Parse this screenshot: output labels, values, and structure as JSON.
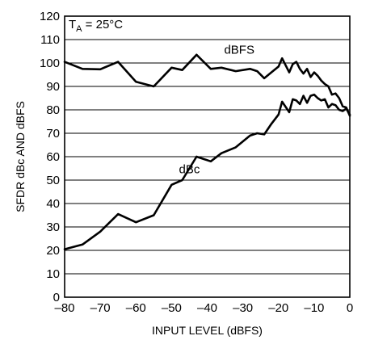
{
  "chart_data": {
    "type": "line",
    "xlabel": "INPUT LEVEL (dBFS)",
    "ylabel": "SFDR dBc AND dBFS",
    "xlim": [
      -80,
      0
    ],
    "ylim": [
      0,
      120
    ],
    "x_ticks": [
      -80,
      -70,
      -60,
      -50,
      -40,
      -30,
      -20,
      -10,
      0
    ],
    "y_ticks": [
      0,
      10,
      20,
      30,
      40,
      50,
      60,
      70,
      80,
      90,
      100,
      110,
      120
    ],
    "grid": "horizontal",
    "condition": {
      "label": "T",
      "subscript": "A",
      "value": " = 25°C"
    },
    "series": [
      {
        "name": "dBFS",
        "x": [
          -80,
          -75,
          -70,
          -65,
          -60,
          -55,
          -50,
          -47,
          -43,
          -39,
          -36,
          -32,
          -28,
          -26,
          -24,
          -22,
          -20,
          -19,
          -17,
          -16,
          -15,
          -14,
          -13,
          -12,
          -11,
          -10,
          -9,
          -8,
          -7,
          -6,
          -5,
          -4,
          -3,
          -2,
          -1,
          0
        ],
        "y": [
          100.5,
          97.5,
          97.3,
          100.5,
          92,
          90,
          98,
          97,
          103.5,
          97.5,
          98,
          96.5,
          97.5,
          96.5,
          93.5,
          96,
          98.5,
          102,
          96,
          99.5,
          100.5,
          97.5,
          95.5,
          97.5,
          94,
          96,
          94.5,
          92.5,
          91,
          90,
          86.5,
          87,
          85,
          81.5,
          81,
          77.5
        ]
      },
      {
        "name": "dBc",
        "x": [
          -80,
          -75,
          -70,
          -65,
          -60,
          -55,
          -50,
          -47,
          -43,
          -39,
          -36,
          -32,
          -28,
          -26,
          -24,
          -22,
          -20,
          -19,
          -17,
          -16,
          -15,
          -14,
          -13,
          -12,
          -11,
          -10,
          -9,
          -8,
          -7,
          -6,
          -5,
          -4,
          -3,
          -2,
          -1,
          0
        ],
        "y": [
          20.5,
          22.5,
          28,
          35.5,
          32,
          35,
          48,
          50,
          60,
          58,
          61.5,
          64,
          69,
          70,
          69.5,
          74,
          78,
          83.5,
          79,
          84.5,
          84,
          82.5,
          86,
          83,
          86,
          86.5,
          85,
          84,
          84.5,
          81,
          82.5,
          82,
          80,
          79.5,
          80.5,
          78
        ]
      }
    ],
    "annotations": [
      {
        "text": "dBFS",
        "x": -31,
        "y": 104
      },
      {
        "text": "dBc",
        "x": -45,
        "y": 53
      }
    ]
  }
}
